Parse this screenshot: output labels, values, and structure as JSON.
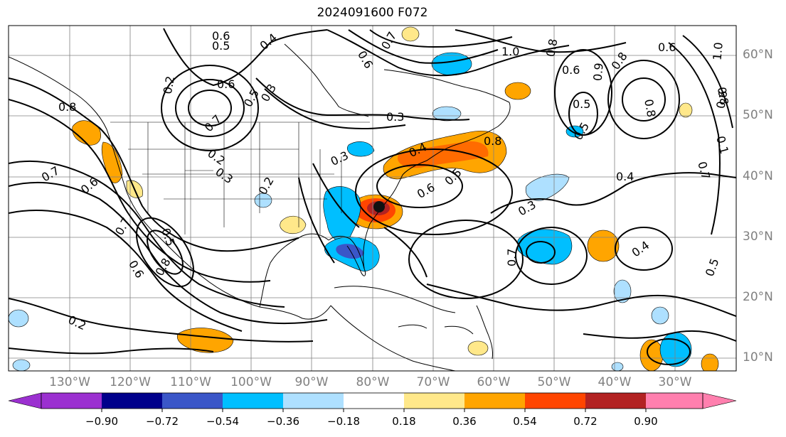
{
  "title": "2024091600 F072",
  "latitude_labels": [
    "60°N",
    "50°N",
    "40°N",
    "30°N",
    "20°N",
    "10°N"
  ],
  "longitude_labels": [
    "130°W",
    "120°W",
    "110°W",
    "100°W",
    "90°W",
    "80°W",
    "70°W",
    "60°W",
    "50°W",
    "40°W",
    "30°W"
  ],
  "colorbar": {
    "tick_labels": [
      "−0.90",
      "−0.72",
      "−0.54",
      "−0.36",
      "−0.18",
      "0.18",
      "0.36",
      "0.54",
      "0.72",
      "0.90"
    ],
    "colors": [
      "#9b30d0",
      "#00008b",
      "#3a56c8",
      "#00bfff",
      "#aee0ff",
      "#ffffff",
      "#ffe88a",
      "#ffa500",
      "#ff4500",
      "#b22222",
      "#ff7fae"
    ]
  },
  "contour_labels": [
    "0.6",
    "0.5",
    "0.4",
    "1.0",
    "0.6",
    "0.8",
    "0.7",
    "0.6",
    "1.0",
    "0.8",
    "0.8",
    "0.6",
    "0.9",
    "0.8",
    "0.6",
    "0.5",
    "0.2",
    "0.6",
    "0.3",
    "0.5",
    "0.8",
    "0.3",
    "0.5",
    "0.7",
    "0.1",
    "0.7",
    "0.8",
    "0.2",
    "0.3",
    "0.2",
    "0.4",
    "0.3",
    "0.6",
    "0.5",
    "0.4",
    "0.3",
    "0.7",
    "0.6",
    "0.5",
    "0.6",
    "0.7",
    "0.8",
    "0.4",
    "0.7",
    "0.5",
    "0.2"
  ],
  "icons": {
    "storm_center": "storm-center-marker"
  }
}
